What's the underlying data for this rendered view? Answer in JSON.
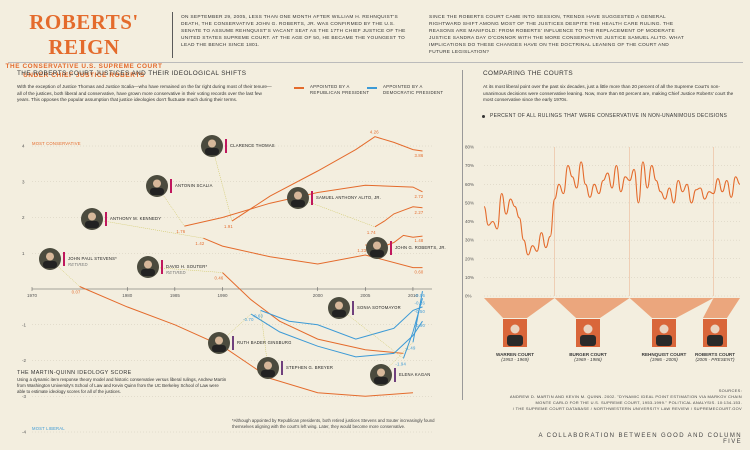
{
  "header": {
    "title": "ROBERTS' REIGN",
    "subtitle_line1": "THE CONSERVATIVE U.S. SUPREME COURT",
    "subtitle_line2": "UNDER CHIEF JUSTICE ROBERTS",
    "intro_left": "ON SEPTEMBER 29, 2005, LESS THAN ONE MONTH AFTER WILLIAM H. REHNQUIST'S DEATH, THE CONSERVATIVE JOHN G. ROBERTS, JR. WAS CONFIRMED BY THE U.S. SENATE TO ASSUME REHNQUIST'S VACANT SEAT AS THE 17TH CHIEF JUSTICE OF THE UNITED STATES SUPREME COURT. AT THE AGE OF 50, HE BECAME THE YOUNGEST TO LEAD THE BENCH SINCE 1801.",
    "intro_right": "SINCE THE ROBERTS COURT CAME INTO SESSION, TRENDS HAVE SUGGESTED A GENERAL RIGHTWARD SHIFT AMONG MOST OF THE JUSTICES DESPITE THE HEALTH CARE RULING. THE REASONS ARE MANIFOLD: FROM ROBERTS' INFLUENCE TO THE REPLACEMENT OF MODERATE JUSTICE SANDRA DAY O'CONNOR WITH THE MORE CONSERVATIVE JUSTICE SAMUEL ALITO. WHAT IMPLICATIONS DO THESE CHANGES HAVE ON THE DOCTRINAL LEANING OF THE COURT AND FUTURE LEGISLATION?"
  },
  "left_section": {
    "heading": "THE ROBERTS COURT JUSTICES AND THEIR IDEOLOGICAL SHIFTS",
    "body": "With the exception of Justice Thomas and Justice Scalia—who have remained on the far right during most of their tenure—all of the justices, both liberal and conservative, have grown more conservative in their voting records over the last few years. This opposes the popular assumption that justice ideologies don't fluctuate much during their terms.",
    "legend_rep": "APPOINTED BY A REPUBLICAN PRESIDENT",
    "legend_dem": "APPOINTED BY A DEMOCRATIC PRESIDENT",
    "mq_title": "THE MARTIN-QUINN IDEOLOGY SCORE",
    "mq_body": "Using a dynamic item response theory model and historic conservative versus liberal rulings, Andrew Martin from Washington University's School of Law and Kevin Quinn from the UC Berkeley School of Law were able to estimate ideology scores for all of the justices.",
    "footnote": "*Although appointed by Republican presidents, both retired justices Stevens and Souter increasingly found themselves aligning with the court's left wing. Later, they would become more conservative.",
    "most_conservative": "MOST CONSERVATIVE",
    "most_liberal": "MOST LIBERAL"
  },
  "right_section": {
    "heading": "COMPARING THE COURTS",
    "body": "At its most liberal point over the past six decades, just a little more than 20 percent of all the Supreme Court's non-unanimous decisions were conservative leaning. Now, more than 60 percent are, making Chief Justice Roberts' court the most conservative since the early 1970s.",
    "chart_label": "PERCENT OF ALL RULINGS THAT WERE CONSERVATIVE IN NON-UNANIMOUS DECISIONS",
    "courts": [
      {
        "name": "WARREN COURT",
        "years": "(1953 - 1969)"
      },
      {
        "name": "BURGER COURT",
        "years": "(1969 - 1986)"
      },
      {
        "name": "REHNQUIST COURT",
        "years": "(1986 - 2005)"
      },
      {
        "name": "ROBERTS COURT",
        "years": "(2005 - PRESENT)"
      }
    ]
  },
  "credits": {
    "label": "SOURCES:",
    "line1": "ANDREW D. MARTIN AND KEVIN M. QUINN. 2002. \"DYNAMIC IDEAL POINT ESTIMATION VIA MARKOV CHAIN",
    "line2": "MONTE CARLO FOR THE U.S. SUPREME COURT, 1953-1999.\" POLITICAL ANALYSIS. 10:134-153.",
    "line3": "/ THE SUPREME COURT DATABASE / NORTHWESTERN UNIVERSITY LAW REVIEW / SUPREMECOURT.GOV",
    "collab": "A COLLABORATION BETWEEN GOOD AND COLUMN FIVE"
  },
  "colors": {
    "republican": "#e46b2c",
    "democratic": "#3c9ad6",
    "accent_dem": "#6f3f7d",
    "background": "#f3eedf"
  },
  "chart_data": [
    {
      "type": "line",
      "title": "THE ROBERTS COURT JUSTICES AND THEIR IDEOLOGICAL SHIFTS",
      "xlabel": "",
      "ylabel": "",
      "xlim": [
        1970,
        2012
      ],
      "ylim": [
        -4,
        4
      ],
      "x_ticks": [
        1970,
        1980,
        1985,
        1990,
        2000,
        2005,
        2010
      ],
      "y_ticks": [
        4,
        3,
        2,
        1,
        -1,
        -2,
        -3,
        -4
      ],
      "series": [
        {
          "name": "CLARENCE THOMAS",
          "party": "rep",
          "label_text": "CLARENCE THOMAS",
          "x": [
            1991,
            1995,
            2000,
            2004,
            2006,
            2008,
            2010,
            2011
          ],
          "y": [
            1.9,
            2.6,
            3.3,
            3.9,
            4.26,
            4.1,
            3.9,
            3.86
          ],
          "start_value": "1.91",
          "end_value": "3.86",
          "peak_value": "4.26"
        },
        {
          "name": "ANTONIN SCALIA",
          "party": "rep",
          "label_text": "ANTONIN SCALIA",
          "x": [
            1986,
            1990,
            1995,
            2000,
            2005,
            2010,
            2011
          ],
          "y": [
            1.76,
            2.0,
            2.4,
            2.7,
            2.9,
            2.85,
            2.72
          ],
          "start_value": "1.76",
          "end_value": "2.72"
        },
        {
          "name": "ANTHONY M. KENNEDY",
          "party": "rep",
          "label_text": "ANTHONY M. KENNEDY",
          "x": [
            1988,
            1990,
            1995,
            2000,
            2005,
            2010,
            2011
          ],
          "y": [
            1.42,
            1.2,
            0.9,
            0.7,
            0.95,
            0.6,
            0.6
          ],
          "start_value": "1.42",
          "end_value": "0.60"
        },
        {
          "name": "SAMUEL ANTHONY ALITO, JR.",
          "party": "rep",
          "label_text": "SAMUEL ANTHONY ALITO, JR.",
          "x": [
            2006,
            2007,
            2008,
            2009,
            2010,
            2011
          ],
          "y": [
            1.74,
            1.9,
            2.1,
            2.2,
            2.3,
            2.27
          ],
          "start_value": "1.74",
          "end_value": "2.27"
        },
        {
          "name": "JOHN G. ROBERTS, JR.",
          "party": "rep",
          "label_text": "JOHN G. ROBERTS, JR.",
          "x": [
            2005,
            2007,
            2008,
            2009,
            2010,
            2011
          ],
          "y": [
            1.23,
            1.2,
            1.3,
            1.5,
            1.45,
            1.48
          ],
          "start_value": "1.23",
          "end_value": "1.48"
        },
        {
          "name": "JOHN PAUL STEVENS*",
          "party": "rep",
          "label_text": "JOHN PAUL STEVENS*",
          "note": "RETIRED",
          "x": [
            1975,
            1980,
            1985,
            1990,
            1995,
            2000,
            2005,
            2010
          ],
          "y": [
            0.07,
            -0.5,
            -1.0,
            -1.6,
            -2.5,
            -2.9,
            -3.0,
            -2.9
          ],
          "start_value": "0.07"
        },
        {
          "name": "DAVID H. SOUTER*",
          "party": "rep",
          "label_text": "DAVID H. SOUTER*",
          "note": "RETIRED",
          "x": [
            1990,
            1993,
            1996,
            2000,
            2005,
            2009
          ],
          "y": [
            0.46,
            -0.3,
            -0.9,
            -1.4,
            -1.7,
            -1.8
          ],
          "start_value": "0.46"
        },
        {
          "name": "RUTH BADER GINSBURG",
          "party": "dem",
          "label_text": "RUTH BADER GINSBURG",
          "x": [
            1993,
            1996,
            2000,
            2004,
            2008,
            2010,
            2011
          ],
          "y": [
            -0.7,
            -1.2,
            -1.6,
            -1.9,
            -1.8,
            -1.3,
            -0.9
          ],
          "start_value": "-0.70",
          "end_value": "-0.90"
        },
        {
          "name": "STEPHEN G. BREYER",
          "party": "dem",
          "label_text": "STEPHEN G. BREYER",
          "x": [
            1994,
            1997,
            2000,
            2004,
            2008,
            2010,
            2011
          ],
          "y": [
            -0.6,
            -0.9,
            -1.0,
            -1.4,
            -1.1,
            -0.6,
            -0.5
          ],
          "start_value": "-0.60",
          "end_value": "-0.50"
        },
        {
          "name": "SONIA SOTOMAYOR",
          "party": "dem",
          "label_text": "SONIA SOTOMAYOR",
          "x": [
            2009,
            2010,
            2011
          ],
          "y": [
            -1.94,
            -1.2,
            -0.26
          ],
          "start_value": "-1.94",
          "end_value": "-0.26"
        },
        {
          "name": "ELENA KAGAN",
          "party": "dem",
          "label_text": "ELENA KAGAN",
          "x": [
            2010,
            2011
          ],
          "y": [
            -1.49,
            -0.06
          ],
          "start_value": "-1.49",
          "end_value": "-0.06"
        }
      ]
    },
    {
      "type": "line",
      "title": "PERCENT OF ALL RULINGS THAT WERE CONSERVATIVE IN NON-UNANIMOUS DECISIONS",
      "xlabel": "",
      "ylabel": "",
      "ylim": [
        0,
        80
      ],
      "y_ticks": [
        "0%",
        "10%",
        "20%",
        "30%",
        "40%",
        "50%",
        "60%",
        "70%",
        "80%"
      ],
      "x": [
        1953,
        1954,
        1955,
        1956,
        1957,
        1958,
        1959,
        1960,
        1961,
        1962,
        1963,
        1964,
        1965,
        1966,
        1967,
        1968,
        1969,
        1970,
        1971,
        1972,
        1973,
        1974,
        1975,
        1976,
        1977,
        1978,
        1979,
        1980,
        1981,
        1982,
        1983,
        1984,
        1985,
        1986,
        1987,
        1988,
        1989,
        1990,
        1991,
        1992,
        1993,
        1994,
        1995,
        1996,
        1997,
        1998,
        1999,
        2000,
        2001,
        2002,
        2003,
        2004,
        2005,
        2006,
        2007,
        2008,
        2009,
        2010,
        2011
      ],
      "values": [
        48,
        38,
        40,
        36,
        55,
        44,
        52,
        48,
        42,
        30,
        22,
        27,
        24,
        34,
        26,
        32,
        52,
        60,
        55,
        70,
        64,
        58,
        72,
        60,
        53,
        60,
        55,
        62,
        66,
        58,
        70,
        56,
        64,
        62,
        68,
        50,
        72,
        58,
        70,
        62,
        56,
        52,
        58,
        50,
        62,
        56,
        60,
        50,
        57,
        58,
        52,
        56,
        55,
        63,
        56,
        62,
        53,
        64,
        60
      ],
      "series": [
        {
          "values": [
            48,
            38,
            40,
            36,
            55,
            44,
            52,
            48,
            42,
            30,
            22,
            27,
            24,
            34,
            26,
            32,
            52,
            60,
            55,
            70,
            64,
            58,
            72,
            60,
            53,
            60,
            55,
            62,
            66,
            58,
            70,
            56,
            64,
            62,
            68,
            50,
            72,
            58,
            70,
            62,
            56,
            52,
            58,
            50,
            62,
            56,
            60,
            50,
            57,
            58,
            52,
            56,
            55,
            63,
            56,
            62,
            53,
            64,
            60
          ]
        }
      ],
      "court_spans": [
        {
          "court": "WARREN COURT",
          "from": 1953,
          "to": 1969
        },
        {
          "court": "BURGER COURT",
          "from": 1969,
          "to": 1986
        },
        {
          "court": "REHNQUIST COURT",
          "from": 1986,
          "to": 2005
        },
        {
          "court": "ROBERTS COURT",
          "from": 2005,
          "to": 2011
        }
      ]
    }
  ]
}
